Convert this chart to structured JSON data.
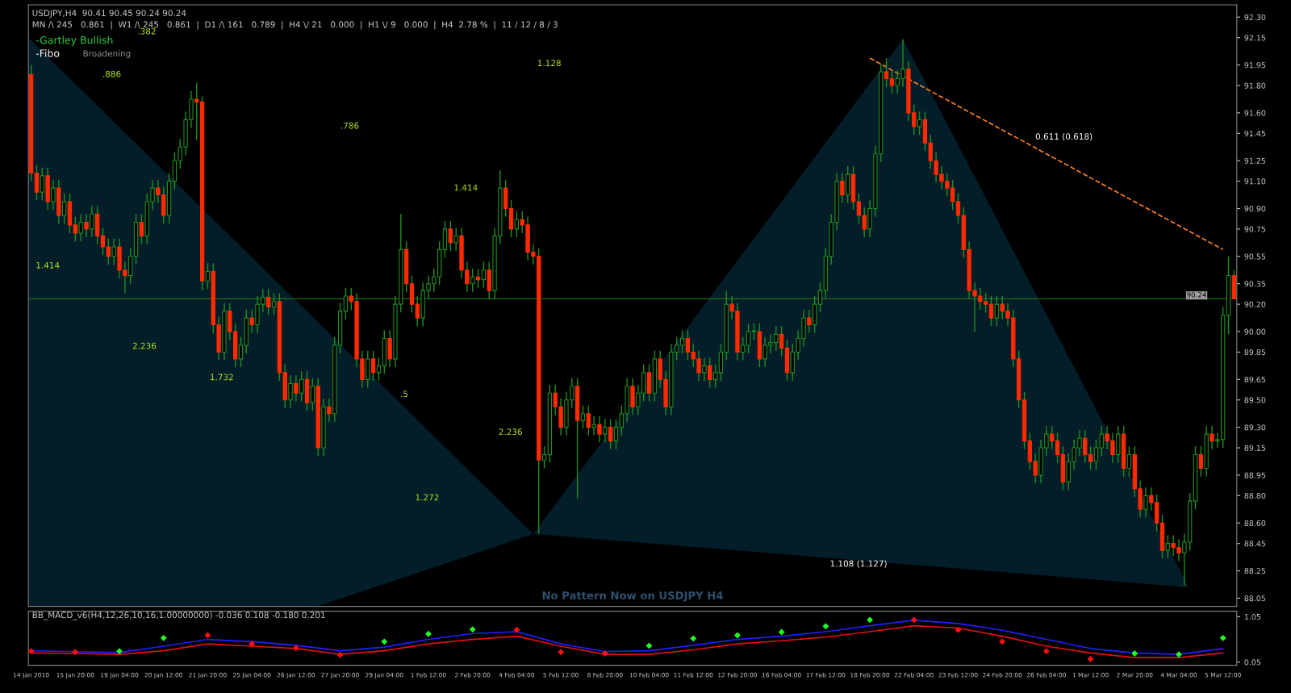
{
  "chart_data": [
    {
      "type": "candlestick",
      "title": "USDJPY,H4  90.41 90.45 90.24 90.24",
      "subtitle": "MN /\\ 245   0.861  |  W1 /\\ 245   0.861  |  D1 /\\ 161   0.789  |  H4 \\/ 21   0.000  |  H1 \\/ 9   0.000  |  H4  2.78 %  |  11 / 12 / 8 / 3",
      "categories": [
        "14 Jan 2010",
        null,
        null,
        null,
        null,
        null,
        null,
        null,
        "15 Jan 20:00",
        null,
        null,
        null,
        null,
        null,
        null,
        null,
        "19 Jan 04:00",
        null,
        null,
        null,
        null,
        null,
        null,
        null,
        "20 Jan 12:00",
        null,
        null,
        null,
        null,
        null,
        null,
        null,
        "21 Jan 20:00",
        null,
        null,
        null,
        null,
        null,
        null,
        null,
        "25 Jan 04:00",
        null,
        null,
        null,
        null,
        null,
        null,
        null,
        "26 Jan 12:00",
        null,
        null,
        null,
        null,
        null,
        null,
        null,
        "27 Jan 20:00",
        null,
        null,
        null,
        null,
        null,
        null,
        null,
        "29 Jan 04:00",
        null,
        null,
        null,
        null,
        null,
        null,
        null,
        "1 Feb 12:00",
        null,
        null,
        null,
        null,
        null,
        null,
        null,
        "2 Feb 20:00",
        null,
        null,
        null,
        null,
        null,
        null,
        null,
        "4 Feb 04:00",
        null,
        null,
        null,
        null,
        null,
        null,
        null,
        "5 Feb 12:00",
        null,
        null,
        null,
        null,
        null,
        null,
        null,
        "8 Feb 20:00",
        null,
        null,
        null,
        null,
        null,
        null,
        null,
        "10 Feb 04:00",
        null,
        null,
        null,
        null,
        null,
        null,
        null,
        "11 Feb 12:00",
        null,
        null,
        null,
        null,
        null,
        null,
        null,
        "12 Feb 20:00",
        null,
        null,
        null,
        null,
        null,
        null,
        null,
        "16 Feb 04:00",
        null,
        null,
        null,
        null,
        null,
        null,
        null,
        "17 Feb 12:00",
        null,
        null,
        null,
        null,
        null,
        null,
        null,
        "18 Feb 20:00",
        null,
        null,
        null,
        null,
        null,
        null,
        null,
        "22 Feb 04:00",
        null,
        null,
        null,
        null,
        null,
        null,
        null,
        "23 Feb 12:00",
        null,
        null,
        null,
        null,
        null,
        null,
        null,
        "24 Feb 20:00",
        null,
        null,
        null,
        null,
        null,
        null,
        null,
        "26 Feb 04:00",
        null,
        null,
        null,
        null,
        null,
        null,
        null,
        "1 Mar 12:00",
        null,
        null,
        null,
        null,
        null,
        null,
        null,
        "2 Mar 20:00",
        null,
        null,
        null,
        null,
        null,
        null,
        null,
        "4 Mar 04:00",
        null,
        null,
        null,
        null,
        null,
        null,
        null,
        "5 Mar 12:00",
        null,
        null
      ],
      "ohlc": [
        [
          91.88,
          91.95,
          91.1,
          91.16
        ],
        [
          91.16,
          91.22,
          90.96,
          91.02
        ],
        [
          91.02,
          91.2,
          90.96,
          91.14
        ],
        [
          91.14,
          91.2,
          90.89,
          90.95
        ],
        [
          90.95,
          91.11,
          90.89,
          91.05
        ],
        [
          91.05,
          91.11,
          90.79,
          90.85
        ],
        [
          90.85,
          91.01,
          90.79,
          90.95
        ],
        [
          90.95,
          91.01,
          90.72,
          90.78
        ],
        [
          90.78,
          90.84,
          90.66,
          90.72
        ],
        [
          90.72,
          90.86,
          90.66,
          90.8
        ],
        [
          90.8,
          90.86,
          90.69,
          90.75
        ],
        [
          90.75,
          90.92,
          90.69,
          90.86
        ],
        [
          90.86,
          90.92,
          90.64,
          90.7
        ],
        [
          90.7,
          90.76,
          90.56,
          90.62
        ],
        [
          90.62,
          90.68,
          90.49,
          90.55
        ],
        [
          90.55,
          90.68,
          90.49,
          90.62
        ],
        [
          90.62,
          90.68,
          90.39,
          90.45
        ],
        [
          90.45,
          90.51,
          90.28,
          90.41
        ],
        [
          90.41,
          90.61,
          90.35,
          90.55
        ],
        [
          90.55,
          90.86,
          90.49,
          90.8
        ],
        [
          90.8,
          90.86,
          90.64,
          90.7
        ],
        [
          90.7,
          91.01,
          90.64,
          90.95
        ],
        [
          90.95,
          91.11,
          90.89,
          91.05
        ],
        [
          91.05,
          91.11,
          90.94,
          91.0
        ],
        [
          91.0,
          91.06,
          90.79,
          90.85
        ],
        [
          90.85,
          91.16,
          90.79,
          91.1
        ],
        [
          91.1,
          91.31,
          91.04,
          91.25
        ],
        [
          91.25,
          91.41,
          91.19,
          91.35
        ],
        [
          91.35,
          91.61,
          91.29,
          91.55
        ],
        [
          91.55,
          91.76,
          91.49,
          91.7
        ],
        [
          91.7,
          91.82,
          91.4,
          91.68
        ],
        [
          91.68,
          91.72,
          90.3,
          90.37
        ],
        [
          90.37,
          90.5,
          90.31,
          90.44
        ],
        [
          90.44,
          90.5,
          89.99,
          90.05
        ],
        [
          90.05,
          90.11,
          89.79,
          89.85
        ],
        [
          89.85,
          90.21,
          89.79,
          90.15
        ],
        [
          90.15,
          90.21,
          89.94,
          90.0
        ],
        [
          90.0,
          90.06,
          89.74,
          89.8
        ],
        [
          89.8,
          89.96,
          89.74,
          89.9
        ],
        [
          89.9,
          90.16,
          89.84,
          90.1
        ],
        [
          90.1,
          90.16,
          89.99,
          90.05
        ],
        [
          90.05,
          90.26,
          89.99,
          90.2
        ],
        [
          90.2,
          90.31,
          90.14,
          90.25
        ],
        [
          90.25,
          90.31,
          90.12,
          90.18
        ],
        [
          90.18,
          90.28,
          90.12,
          90.22
        ],
        [
          90.22,
          90.28,
          89.64,
          89.7
        ],
        [
          89.7,
          89.76,
          89.44,
          89.5
        ],
        [
          89.5,
          89.68,
          89.44,
          89.62
        ],
        [
          89.62,
          89.68,
          89.49,
          89.55
        ],
        [
          89.55,
          89.71,
          89.49,
          89.65
        ],
        [
          89.65,
          89.71,
          89.42,
          89.48
        ],
        [
          89.48,
          89.66,
          89.42,
          89.6
        ],
        [
          89.6,
          89.66,
          89.09,
          89.15
        ],
        [
          89.15,
          89.51,
          89.09,
          89.45
        ],
        [
          89.45,
          89.51,
          89.34,
          89.4
        ],
        [
          89.4,
          89.96,
          89.34,
          89.9
        ],
        [
          89.9,
          90.21,
          89.84,
          90.15
        ],
        [
          90.15,
          90.32,
          90.09,
          90.26
        ],
        [
          90.26,
          90.32,
          90.16,
          90.22
        ],
        [
          90.22,
          90.28,
          89.74,
          89.8
        ],
        [
          89.8,
          89.86,
          89.59,
          89.65
        ],
        [
          89.65,
          89.86,
          89.59,
          89.8
        ],
        [
          89.8,
          89.86,
          89.64,
          89.7
        ],
        [
          89.7,
          89.81,
          89.64,
          89.75
        ],
        [
          89.75,
          90.01,
          89.69,
          89.95
        ],
        [
          89.95,
          90.01,
          89.74,
          89.8
        ],
        [
          89.8,
          90.26,
          89.74,
          90.2
        ],
        [
          90.2,
          90.86,
          90.14,
          90.6
        ],
        [
          90.6,
          90.66,
          90.29,
          90.35
        ],
        [
          90.35,
          90.41,
          90.14,
          90.2
        ],
        [
          90.2,
          90.26,
          90.04,
          90.1
        ],
        [
          90.1,
          90.36,
          90.04,
          90.3
        ],
        [
          90.3,
          90.41,
          90.24,
          90.35
        ],
        [
          90.35,
          90.46,
          90.29,
          90.4
        ],
        [
          90.4,
          90.66,
          90.34,
          90.6
        ],
        [
          90.6,
          90.81,
          90.54,
          90.75
        ],
        [
          90.75,
          90.81,
          90.59,
          90.65
        ],
        [
          90.65,
          90.76,
          90.59,
          90.7
        ],
        [
          90.7,
          90.76,
          90.39,
          90.45
        ],
        [
          90.45,
          90.51,
          90.29,
          90.35
        ],
        [
          90.35,
          90.46,
          90.29,
          90.4
        ],
        [
          90.4,
          90.46,
          90.32,
          90.38
        ],
        [
          90.38,
          90.51,
          90.32,
          90.45
        ],
        [
          90.45,
          90.51,
          90.24,
          90.3
        ],
        [
          90.3,
          90.76,
          90.24,
          90.7
        ],
        [
          90.7,
          91.18,
          90.64,
          91.05
        ],
        [
          91.05,
          91.11,
          90.84,
          90.9
        ],
        [
          90.9,
          90.96,
          90.69,
          90.75
        ],
        [
          90.75,
          90.88,
          90.69,
          90.82
        ],
        [
          90.82,
          90.88,
          90.72,
          90.78
        ],
        [
          90.78,
          90.84,
          90.52,
          90.58
        ],
        [
          90.58,
          90.64,
          90.49,
          90.55
        ],
        [
          90.55,
          90.61,
          88.52,
          89.06
        ],
        [
          89.06,
          89.16,
          89.0,
          89.1
        ],
        [
          89.1,
          89.61,
          89.04,
          89.55
        ],
        [
          89.55,
          89.61,
          89.39,
          89.45
        ],
        [
          89.45,
          89.51,
          89.24,
          89.3
        ],
        [
          89.3,
          89.56,
          89.24,
          89.5
        ],
        [
          89.5,
          89.66,
          89.44,
          89.6
        ],
        [
          89.6,
          89.66,
          88.78,
          89.35
        ],
        [
          89.35,
          89.46,
          89.29,
          89.4
        ],
        [
          89.4,
          89.46,
          89.24,
          89.3
        ],
        [
          89.3,
          89.38,
          89.24,
          89.32
        ],
        [
          89.32,
          89.38,
          89.19,
          89.25
        ],
        [
          89.25,
          89.36,
          89.19,
          89.3
        ],
        [
          89.3,
          89.36,
          89.14,
          89.2
        ],
        [
          89.2,
          89.36,
          89.14,
          89.3
        ],
        [
          89.3,
          89.46,
          89.24,
          89.4
        ],
        [
          89.4,
          89.66,
          89.34,
          89.6
        ],
        [
          89.6,
          89.66,
          89.39,
          89.45
        ],
        [
          89.45,
          89.61,
          89.39,
          89.55
        ],
        [
          89.55,
          89.76,
          89.49,
          89.7
        ],
        [
          89.7,
          89.76,
          89.49,
          89.55
        ],
        [
          89.55,
          89.86,
          89.49,
          89.8
        ],
        [
          89.8,
          89.86,
          89.59,
          89.65
        ],
        [
          89.65,
          89.71,
          89.39,
          89.45
        ],
        [
          89.45,
          89.91,
          89.39,
          89.85
        ],
        [
          89.85,
          89.96,
          89.79,
          89.9
        ],
        [
          89.9,
          90.01,
          89.84,
          89.95
        ],
        [
          89.95,
          90.01,
          89.79,
          89.85
        ],
        [
          89.85,
          89.91,
          89.74,
          89.8
        ],
        [
          89.8,
          89.86,
          89.64,
          89.7
        ],
        [
          89.7,
          89.81,
          89.64,
          89.75
        ],
        [
          89.75,
          89.81,
          89.59,
          89.65
        ],
        [
          89.65,
          89.76,
          89.59,
          89.7
        ],
        [
          89.7,
          89.91,
          89.64,
          89.85
        ],
        [
          89.85,
          90.3,
          89.79,
          90.2
        ],
        [
          90.2,
          90.26,
          90.09,
          90.15
        ],
        [
          90.15,
          90.21,
          89.79,
          89.85
        ],
        [
          89.85,
          89.96,
          89.79,
          89.9
        ],
        [
          89.9,
          90.06,
          89.84,
          90.0
        ],
        [
          90.0,
          90.06,
          89.94,
          90.0
        ],
        [
          90.0,
          90.06,
          89.74,
          89.8
        ],
        [
          89.8,
          89.96,
          89.74,
          89.9
        ],
        [
          89.9,
          89.98,
          89.84,
          89.92
        ],
        [
          89.92,
          90.04,
          89.86,
          89.98
        ],
        [
          89.98,
          90.04,
          89.82,
          89.88
        ],
        [
          89.88,
          89.94,
          89.64,
          89.7
        ],
        [
          89.7,
          89.91,
          89.64,
          89.85
        ],
        [
          89.85,
          90.01,
          89.79,
          89.95
        ],
        [
          89.95,
          90.16,
          89.89,
          90.1
        ],
        [
          90.1,
          90.16,
          89.99,
          90.05
        ],
        [
          90.05,
          90.26,
          89.99,
          90.2
        ],
        [
          90.2,
          90.36,
          90.14,
          90.3
        ],
        [
          90.3,
          90.61,
          90.24,
          90.55
        ],
        [
          90.55,
          90.86,
          90.49,
          90.8
        ],
        [
          90.8,
          91.16,
          90.74,
          91.1
        ],
        [
          91.1,
          91.16,
          90.94,
          91.0
        ],
        [
          91.0,
          91.21,
          90.94,
          91.15
        ],
        [
          91.15,
          91.21,
          90.89,
          90.95
        ],
        [
          90.95,
          91.01,
          90.79,
          90.85
        ],
        [
          90.85,
          90.91,
          90.69,
          90.75
        ],
        [
          90.75,
          90.96,
          90.69,
          90.9
        ],
        [
          90.9,
          91.36,
          90.84,
          91.3
        ],
        [
          91.3,
          91.96,
          91.24,
          91.9
        ],
        [
          91.9,
          92.0,
          91.79,
          91.85
        ],
        [
          91.85,
          91.91,
          91.74,
          91.8
        ],
        [
          91.8,
          91.91,
          91.74,
          91.85
        ],
        [
          91.85,
          92.14,
          91.79,
          91.92
        ],
        [
          91.92,
          91.98,
          91.54,
          91.6
        ],
        [
          91.6,
          91.66,
          91.44,
          91.5
        ],
        [
          91.5,
          91.61,
          91.44,
          91.55
        ],
        [
          91.55,
          91.61,
          91.32,
          91.38
        ],
        [
          91.38,
          91.44,
          91.19,
          91.25
        ],
        [
          91.25,
          91.31,
          91.09,
          91.15
        ],
        [
          91.15,
          91.21,
          91.04,
          91.1
        ],
        [
          91.1,
          91.16,
          90.99,
          91.05
        ],
        [
          91.05,
          91.11,
          90.89,
          90.95
        ],
        [
          90.95,
          91.01,
          90.79,
          90.85
        ],
        [
          90.85,
          90.91,
          90.54,
          90.6
        ],
        [
          90.6,
          90.66,
          90.24,
          90.3
        ],
        [
          90.3,
          90.36,
          90.0,
          90.26
        ],
        [
          90.26,
          90.32,
          90.16,
          90.22
        ],
        [
          90.22,
          90.28,
          90.14,
          90.2
        ],
        [
          90.2,
          90.26,
          90.04,
          90.1
        ],
        [
          90.1,
          90.26,
          90.04,
          90.2
        ],
        [
          90.2,
          90.26,
          90.09,
          90.15
        ],
        [
          90.15,
          90.21,
          90.04,
          90.1
        ],
        [
          90.1,
          90.16,
          89.74,
          89.8
        ],
        [
          89.8,
          89.86,
          89.44,
          89.5
        ],
        [
          89.5,
          89.56,
          89.14,
          89.2
        ],
        [
          89.2,
          89.26,
          88.99,
          89.05
        ],
        [
          89.05,
          89.11,
          88.89,
          88.95
        ],
        [
          88.95,
          89.21,
          88.89,
          89.15
        ],
        [
          89.15,
          89.31,
          89.09,
          89.25
        ],
        [
          89.25,
          89.31,
          89.14,
          89.2
        ],
        [
          89.2,
          89.26,
          89.04,
          89.1
        ],
        [
          89.1,
          89.16,
          88.84,
          88.9
        ],
        [
          88.9,
          89.11,
          88.84,
          89.05
        ],
        [
          89.05,
          89.21,
          88.99,
          89.15
        ],
        [
          89.15,
          89.28,
          89.09,
          89.22
        ],
        [
          89.22,
          89.28,
          89.04,
          89.1
        ],
        [
          89.1,
          89.16,
          88.99,
          89.05
        ],
        [
          89.05,
          89.21,
          88.99,
          89.15
        ],
        [
          89.15,
          89.31,
          89.09,
          89.25
        ],
        [
          89.25,
          89.31,
          89.14,
          89.2
        ],
        [
          89.2,
          89.26,
          89.04,
          89.1
        ],
        [
          89.1,
          89.31,
          89.04,
          89.25
        ],
        [
          89.25,
          89.31,
          88.94,
          89.0
        ],
        [
          89.0,
          89.16,
          88.94,
          89.1
        ],
        [
          89.1,
          89.16,
          88.79,
          88.85
        ],
        [
          88.85,
          88.91,
          88.64,
          88.7
        ],
        [
          88.7,
          88.86,
          88.64,
          88.8
        ],
        [
          88.8,
          88.86,
          88.69,
          88.75
        ],
        [
          88.75,
          88.81,
          88.54,
          88.6
        ],
        [
          88.6,
          88.66,
          88.34,
          88.4
        ],
        [
          88.4,
          88.51,
          88.34,
          88.45
        ],
        [
          88.45,
          88.51,
          88.36,
          88.42
        ],
        [
          88.42,
          88.48,
          88.32,
          88.38
        ],
        [
          88.38,
          88.52,
          88.14,
          88.46
        ],
        [
          88.46,
          88.82,
          88.4,
          88.76
        ],
        [
          88.76,
          89.16,
          88.7,
          89.1
        ],
        [
          89.1,
          89.16,
          88.94,
          89.0
        ],
        [
          89.0,
          89.31,
          88.94,
          89.25
        ],
        [
          89.25,
          89.31,
          89.14,
          89.2
        ],
        [
          89.2,
          89.26,
          89.15,
          89.21
        ],
        [
          89.21,
          90.18,
          89.15,
          90.12
        ],
        [
          90.12,
          90.55,
          89.98,
          90.41
        ],
        [
          90.41,
          90.45,
          90.24,
          90.24
        ]
      ],
      "series": [
        {
          "type": "line",
          "color": "#ff7f27",
          "line_style": "dashed",
          "x": [
            "18 Feb 20:00",
            "5 Mar 12:00"
          ],
          "values": [
            92.0,
            90.6
          ]
        }
      ],
      "ref_lines": [
        {
          "axis": "y",
          "value": 90.24,
          "label": "90.24",
          "color": "#1e6b1e"
        }
      ],
      "annotations": [
        "-Gartley Bullish",
        "-Fibo",
        "Broadening",
        "No Pattern Now on USDJPY H4",
        ".382",
        ".886",
        ".786",
        "1.414",
        "1.128",
        "1.414",
        "2.236",
        "1.732",
        ".5",
        "2.236",
        "1.272",
        "0.611 (0.618)",
        "1.108 (1.127)"
      ],
      "tick_labels": "y",
      "ylim": [
        87.99,
        92.39
      ],
      "yticks": [
        {
          "value": 92.3,
          "label": "92.30"
        },
        {
          "value": 92.15,
          "label": "92.15"
        },
        {
          "value": 91.95,
          "label": "91.95"
        },
        {
          "value": 91.8,
          "label": "91.80"
        },
        {
          "value": 91.6,
          "label": "91.60"
        },
        {
          "value": 91.45,
          "label": "91.45"
        },
        {
          "value": 91.25,
          "label": "91.25"
        },
        {
          "value": 91.1,
          "label": "91.10"
        },
        {
          "value": 90.9,
          "label": "90.90"
        },
        {
          "value": 90.75,
          "label": "90.75"
        },
        {
          "value": 90.55,
          "label": "90.55"
        },
        {
          "value": 90.35,
          "label": "90.35"
        },
        {
          "value": 90.2,
          "label": "90.20"
        },
        {
          "value": 90.0,
          "label": "90.00"
        },
        {
          "value": 89.85,
          "label": "89.85"
        },
        {
          "value": 89.65,
          "label": "89.65"
        },
        {
          "value": 89.5,
          "label": "89.50"
        },
        {
          "value": 89.3,
          "label": "89.30"
        },
        {
          "value": 89.15,
          "label": "89.15"
        },
        {
          "value": 88.95,
          "label": "88.95"
        },
        {
          "value": 88.8,
          "label": "88.80"
        },
        {
          "value": 88.6,
          "label": "88.60"
        },
        {
          "value": 88.45,
          "label": "88.45"
        },
        {
          "value": 88.25,
          "label": "88.25"
        },
        {
          "value": 88.05,
          "label": "88.05"
        }
      ]
    },
    {
      "type": "line",
      "title": "BB_MACD_v6(H4,12,26,10,16,1.00000000) -0.036 0.108 -0.180 0.201",
      "categories": [
        "14 Jan 2010",
        null,
        null,
        null,
        null,
        null,
        null,
        null,
        "15 Jan 20:00",
        null,
        null,
        null,
        null,
        null,
        null,
        null,
        "19 Jan 04:00",
        null,
        null,
        null,
        null,
        null,
        null,
        null,
        "20 Jan 12:00",
        null,
        null,
        null,
        null,
        null,
        null,
        null,
        "21 Jan 20:00",
        null,
        null,
        null,
        null,
        null,
        null,
        null,
        "25 Jan 04:00",
        null,
        null,
        null,
        null,
        null,
        null,
        null,
        "26 Jan 12:00",
        null,
        null,
        null,
        null,
        null,
        null,
        null,
        "27 Jan 20:00",
        null,
        null,
        null,
        null,
        null,
        null,
        null,
        "29 Jan 04:00",
        null,
        null,
        null,
        null,
        null,
        null,
        null,
        "1 Feb 12:00",
        null,
        null,
        null,
        null,
        null,
        null,
        null,
        "2 Feb 20:00",
        null,
        null,
        null,
        null,
        null,
        null,
        null,
        "4 Feb 04:00",
        null,
        null,
        null,
        null,
        null,
        null,
        null,
        "5 Feb 12:00",
        null,
        null,
        null,
        null,
        null,
        null,
        null,
        "8 Feb 20:00",
        null,
        null,
        null,
        null,
        null,
        null,
        null,
        "10 Feb 04:00",
        null,
        null,
        null,
        null,
        null,
        null,
        null,
        "11 Feb 12:00",
        null,
        null,
        null,
        null,
        null,
        null,
        null,
        "12 Feb 20:00",
        null,
        null,
        null,
        null,
        null,
        null,
        null,
        "16 Feb 04:00",
        null,
        null,
        null,
        null,
        null,
        null,
        null,
        "17 Feb 12:00",
        null,
        null,
        null,
        null,
        null,
        null,
        null,
        "18 Feb 20:00",
        null,
        null,
        null,
        null,
        null,
        null,
        null,
        "22 Feb 04:00",
        null,
        null,
        null,
        null,
        null,
        null,
        null,
        "23 Feb 12:00",
        null,
        null,
        null,
        null,
        null,
        null,
        null,
        "24 Feb 20:00",
        null,
        null,
        null,
        null,
        null,
        null,
        null,
        "26 Feb 04:00",
        null,
        null,
        null,
        null,
        null,
        null,
        null,
        "1 Mar 12:00",
        null,
        null,
        null,
        null,
        null,
        null,
        null,
        "2 Mar 20:00",
        null,
        null,
        null,
        null,
        null,
        null,
        null,
        "4 Mar 04:00",
        null,
        null,
        null,
        null,
        null,
        null,
        null,
        "5 Mar 12:00",
        null,
        null
      ],
      "series": [
        {
          "type": "line",
          "color": "#2020ff",
          "x": [
            "14 Jan 2010",
            "15 Jan 20:00",
            "19 Jan 04:00",
            "20 Jan 12:00",
            "21 Jan 20:00",
            "25 Jan 04:00",
            "26 Jan 12:00",
            "27 Jan 20:00",
            "29 Jan 04:00",
            "1 Feb 12:00",
            "2 Feb 20:00",
            "4 Feb 04:00",
            "5 Feb 12:00",
            "8 Feb 20:00",
            "10 Feb 04:00",
            "11 Feb 12:00",
            "12 Feb 20:00",
            "16 Feb 04:00",
            "17 Feb 12:00",
            "18 Feb 20:00",
            "22 Feb 04:00",
            "23 Feb 12:00",
            "24 Feb 20:00",
            "26 Feb 04:00",
            "1 Mar 12:00",
            "2 Mar 20:00",
            "4 Mar 04:00",
            "5 Mar 12:00"
          ],
          "values": [
            0.3,
            0.28,
            0.26,
            0.4,
            0.55,
            0.5,
            0.42,
            0.3,
            0.38,
            0.55,
            0.68,
            0.72,
            0.45,
            0.28,
            0.3,
            0.42,
            0.55,
            0.62,
            0.72,
            0.85,
            0.97,
            0.9,
            0.75,
            0.55,
            0.35,
            0.25,
            0.22,
            0.35
          ]
        },
        {
          "type": "line",
          "color": "#e01010",
          "x": [
            "14 Jan 2010",
            "15 Jan 20:00",
            "19 Jan 04:00",
            "20 Jan 12:00",
            "21 Jan 20:00",
            "25 Jan 04:00",
            "26 Jan 12:00",
            "27 Jan 20:00",
            "29 Jan 04:00",
            "1 Feb 12:00",
            "2 Feb 20:00",
            "4 Feb 04:00",
            "5 Feb 12:00",
            "8 Feb 20:00",
            "10 Feb 04:00",
            "11 Feb 12:00",
            "12 Feb 20:00",
            "16 Feb 04:00",
            "17 Feb 12:00",
            "18 Feb 20:00",
            "22 Feb 04:00",
            "23 Feb 12:00",
            "24 Feb 20:00",
            "26 Feb 04:00",
            "1 Mar 12:00",
            "2 Mar 20:00",
            "4 Mar 04:00",
            "5 Mar 12:00"
          ],
          "values": [
            0.25,
            0.24,
            0.22,
            0.3,
            0.45,
            0.4,
            0.35,
            0.22,
            0.3,
            0.45,
            0.55,
            0.62,
            0.4,
            0.22,
            0.22,
            0.32,
            0.45,
            0.52,
            0.6,
            0.72,
            0.85,
            0.8,
            0.62,
            0.4,
            0.25,
            0.15,
            0.15,
            0.25
          ]
        },
        {
          "type": "scatter",
          "marker": "diamond",
          "x": [
            "14 Jan 2010",
            "15 Jan 20:00",
            "19 Jan 04:00",
            "20 Jan 12:00",
            "21 Jan 20:00",
            "25 Jan 04:00",
            "26 Jan 12:00",
            "27 Jan 20:00",
            "29 Jan 04:00",
            "1 Feb 12:00",
            "2 Feb 20:00",
            "4 Feb 04:00",
            "5 Feb 12:00",
            "8 Feb 20:00",
            "10 Feb 04:00",
            "11 Feb 12:00",
            "12 Feb 20:00",
            "16 Feb 04:00",
            "17 Feb 12:00",
            "18 Feb 20:00",
            "22 Feb 04:00",
            "23 Feb 12:00",
            "24 Feb 20:00",
            "26 Feb 04:00",
            "1 Mar 12:00",
            "2 Mar 20:00",
            "4 Mar 04:00",
            "5 Mar 12:00"
          ],
          "values": [
            0.29,
            0.27,
            0.29,
            0.58,
            0.64,
            0.45,
            0.36,
            0.21,
            0.5,
            0.67,
            0.77,
            0.76,
            0.27,
            0.24,
            0.41,
            0.57,
            0.64,
            0.71,
            0.84,
            0.98,
            0.98,
            0.76,
            0.5,
            0.29,
            0.12,
            0.24,
            0.22,
            0.58
          ],
          "colors": [
            "#ff1010",
            "#ff1010",
            "#22ff22",
            "#22ff22",
            "#ff1010",
            "#ff1010",
            "#ff1010",
            "#ff1010",
            "#22ff22",
            "#22ff22",
            "#22ff22",
            "#ff1010",
            "#ff1010",
            "#ff1010",
            "#22ff22",
            "#22ff22",
            "#22ff22",
            "#22ff22",
            "#22ff22",
            "#22ff22",
            "#ff1010",
            "#ff1010",
            "#ff1010",
            "#ff1010",
            "#ff1010",
            "#22ff22",
            "#22ff22",
            "#22ff22"
          ]
        }
      ],
      "ylim": [
        -0.02,
        1.17
      ],
      "yticks": [
        1.05,
        0.05
      ]
    }
  ]
}
